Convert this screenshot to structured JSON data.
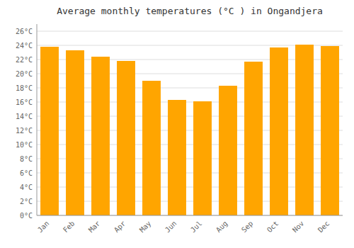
{
  "chart_data": {
    "type": "bar",
    "title": "Average monthly temperatures (°C ) in Ongandjera",
    "categories": [
      "Jan",
      "Feb",
      "Mar",
      "Apr",
      "May",
      "Jun",
      "Jul",
      "Aug",
      "Sep",
      "Oct",
      "Nov",
      "Dec"
    ],
    "values": [
      23.8,
      23.3,
      22.4,
      21.8,
      19.0,
      16.3,
      16.1,
      18.3,
      21.7,
      23.7,
      24.1,
      23.9
    ],
    "color": "#FFA500",
    "ylim": [
      0,
      27
    ],
    "yticks": [
      {
        "value": 0,
        "label": "0°C"
      },
      {
        "value": 2,
        "label": "2°C"
      },
      {
        "value": 4,
        "label": "4°C"
      },
      {
        "value": 6,
        "label": "6°C"
      },
      {
        "value": 8,
        "label": "8°C"
      },
      {
        "value": 10,
        "label": "10°C"
      },
      {
        "value": 12,
        "label": "12°C"
      },
      {
        "value": 14,
        "label": "14°C"
      },
      {
        "value": 16,
        "label": "16°C"
      },
      {
        "value": 18,
        "label": "18°C"
      },
      {
        "value": 20,
        "label": "20°C"
      },
      {
        "value": 22,
        "label": "22°C"
      },
      {
        "value": 24,
        "label": "24°C"
      },
      {
        "value": 26,
        "label": "26°C"
      }
    ],
    "grid": true
  }
}
